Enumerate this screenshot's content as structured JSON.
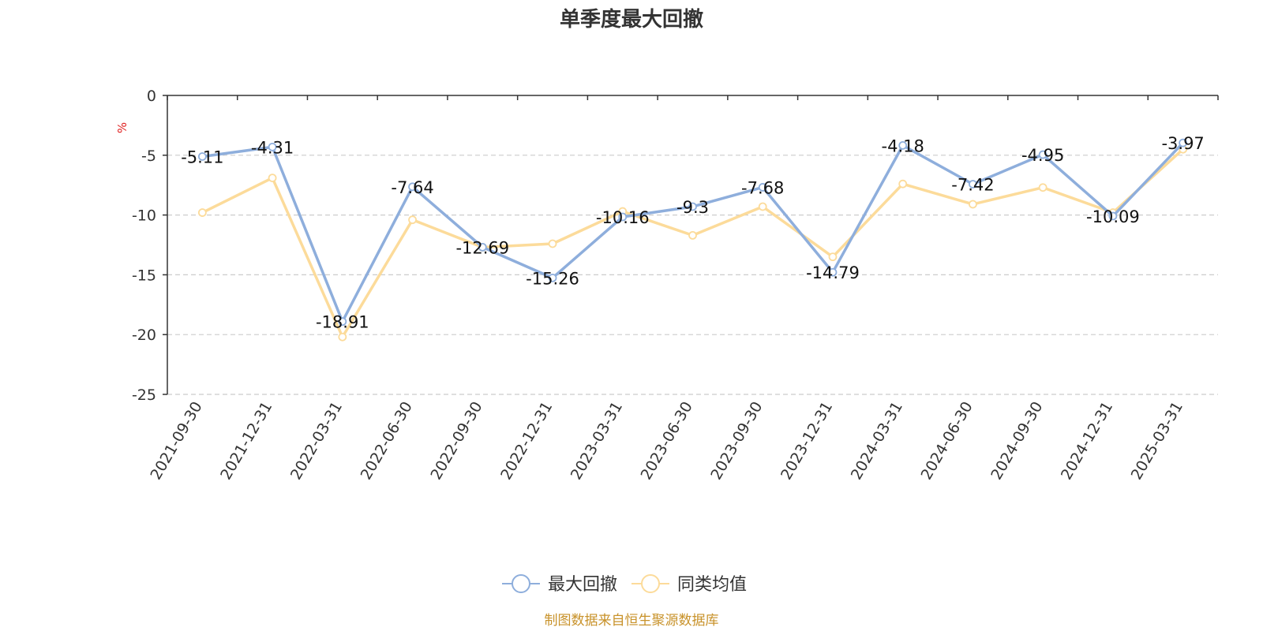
{
  "chart_data": {
    "type": "line",
    "title": "单季度最大回撤",
    "y_unit": "%",
    "ylim": [
      -25,
      0
    ],
    "y_ticks": [
      0,
      -5,
      -10,
      -15,
      -20,
      -25
    ],
    "grid": true,
    "legend_position": "bottom",
    "categories": [
      "2021-09-30",
      "2021-12-31",
      "2022-03-31",
      "2022-06-30",
      "2022-09-30",
      "2022-12-31",
      "2023-03-31",
      "2023-06-30",
      "2023-09-30",
      "2023-12-31",
      "2024-03-31",
      "2024-06-30",
      "2024-09-30",
      "2024-12-31",
      "2025-03-31"
    ],
    "series": [
      {
        "name": "最大回撤",
        "color": "#8eaedc",
        "show_labels": true,
        "values": [
          -5.11,
          -4.31,
          -18.91,
          -7.64,
          -12.69,
          -15.26,
          -10.16,
          -9.3,
          -7.68,
          -14.79,
          -4.18,
          -7.42,
          -4.95,
          -10.09,
          -3.97
        ]
      },
      {
        "name": "同类均值",
        "color": "#fcdb9a",
        "show_labels": false,
        "values": [
          -9.8,
          -6.9,
          -20.2,
          -10.4,
          -12.7,
          -12.4,
          -9.7,
          -11.7,
          -9.3,
          -13.5,
          -7.4,
          -9.1,
          -7.7,
          -9.8,
          -4.5
        ]
      }
    ],
    "source": "制图数据来自恒生聚源数据库"
  }
}
